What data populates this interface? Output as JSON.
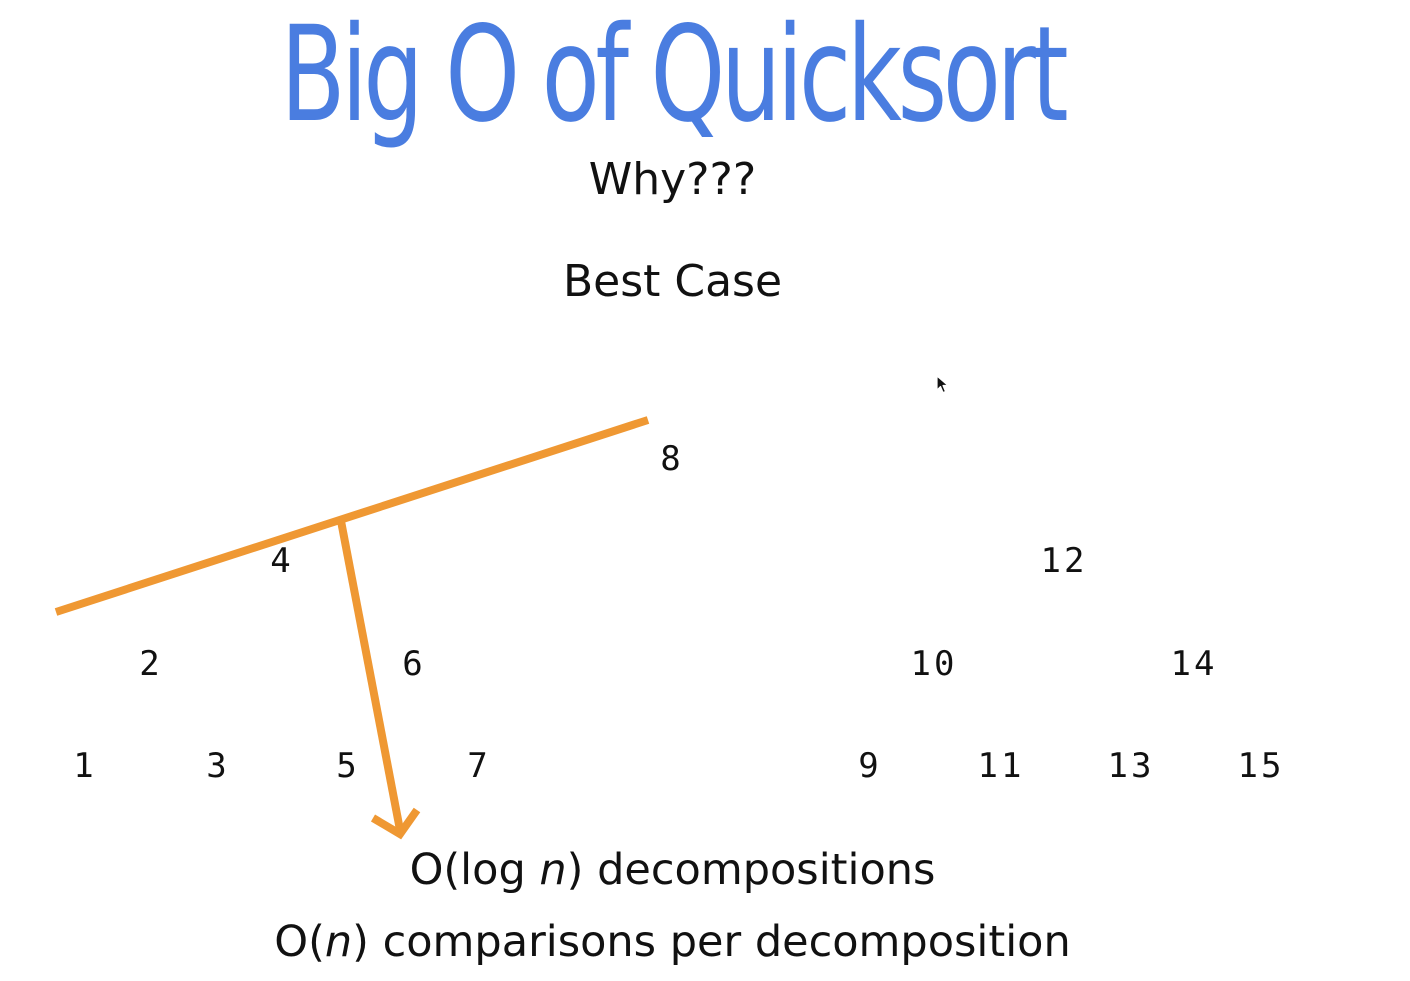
{
  "slide": {
    "title": "Big O of Quicksort",
    "title_color": "#4a7de0",
    "subtitle": "Why???",
    "case_label": "Best Case",
    "result_line1": {
      "prefix": "O(log ",
      "variable": "n",
      "suffix": ") decompositions"
    },
    "result_line2": {
      "prefix": "O(",
      "variable": "n",
      "suffix": ") comparisons per decomposition"
    }
  },
  "tree": {
    "root": "8",
    "level1": [
      "4",
      "12"
    ],
    "level2": [
      "2",
      "6",
      "10",
      "14"
    ],
    "level3": [
      "1",
      "3",
      "5",
      "7",
      "9",
      "11",
      "13",
      "15"
    ]
  },
  "annotation": {
    "color": "#ef9833",
    "shape": "orange line along the left branch with an arrow pointing down to the text"
  },
  "cursor_icon": "mouse-pointer-icon"
}
